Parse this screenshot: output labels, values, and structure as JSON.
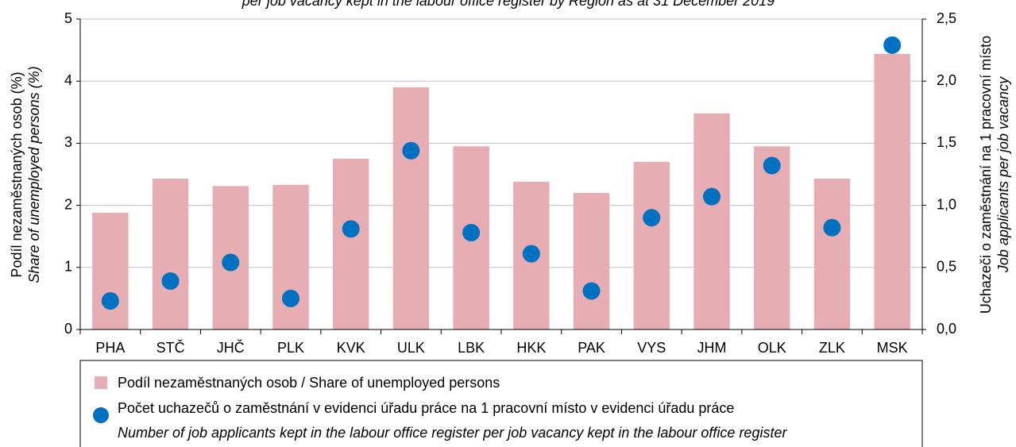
{
  "chart_data": {
    "type": "bar_dot",
    "title": "per job vacancy kept in the labour office register by Region as at 31 December 2019",
    "ylabel": "Podíl nezaměstnaných osob (%)",
    "ylabel_en": "Share of unemployed persons (%)",
    "y2label": "Uchazeči o zaměstnání na 1 pracovní místo",
    "y2label_en": "Job applicants per job vacancy",
    "categories": [
      "PHA",
      "STČ",
      "JHČ",
      "PLK",
      "KVK",
      "ULK",
      "LBK",
      "HKK",
      "PAK",
      "VYS",
      "JHM",
      "OLK",
      "ZLK",
      "MSK"
    ],
    "series": [
      {
        "name": "Podíl nezaměstnaných osob / Share of unemployed persons",
        "color": "#e6adb2",
        "type": "bar",
        "values": [
          1.88,
          2.43,
          2.31,
          2.33,
          2.75,
          3.9,
          2.95,
          2.38,
          2.2,
          2.7,
          3.48,
          2.95,
          2.43,
          4.44
        ]
      },
      {
        "name": "Počet uchazečů o zaměstnání v evidenci úřadu práce na 1 pracovní místo v evidenci úřadu práce",
        "name_en": "Number of job applicants kept in the labour office register per job vacancy kept in the labour office register",
        "color": "#0070c0",
        "type": "dot",
        "axis": "y2",
        "values": [
          0.23,
          0.39,
          0.54,
          0.25,
          0.81,
          1.44,
          0.78,
          0.61,
          0.31,
          0.9,
          1.07,
          1.32,
          0.82,
          2.29
        ]
      }
    ],
    "ylim": [
      0,
      5
    ],
    "yticks": [
      0,
      1,
      2,
      3,
      4,
      5
    ],
    "y2lim": [
      0,
      2.5
    ],
    "y2ticks": [
      {
        "value": 0,
        "label": "0,0"
      },
      {
        "value": 0.5,
        "label": "0,5"
      },
      {
        "value": 1,
        "label": "1,0"
      },
      {
        "value": 1.5,
        "label": "1,5"
      },
      {
        "value": 2,
        "label": "2,0"
      },
      {
        "value": 2.5,
        "label": "2,5"
      }
    ],
    "grid": true
  }
}
